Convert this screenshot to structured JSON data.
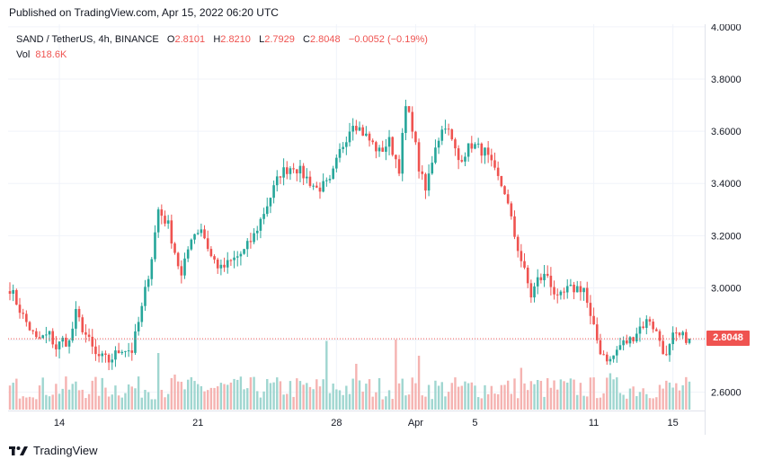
{
  "header": {
    "published": "Published on TradingView.com, Apr 15, 2022 06:20 UTC"
  },
  "legend": {
    "symbol": "SAND / TetherUS, 4h, BINANCE",
    "o_label": "O",
    "o_value": "2.8101",
    "h_label": "H",
    "h_value": "2.8210",
    "l_label": "L",
    "l_value": "2.7929",
    "c_label": "C",
    "c_value": "2.8048",
    "change": "−0.0052 (−0.19%)",
    "vol_label": "Vol",
    "vol_value": "818.6K"
  },
  "colors": {
    "up": "#26a69a",
    "down": "#ef5350",
    "vol_up": "#9fd6d0",
    "vol_down": "#f5b3b1",
    "grid": "#f0f3fa"
  },
  "price_tag": "2.8048",
  "footer": {
    "brand": "TradingView"
  },
  "chart_data": {
    "type": "candlestick",
    "symbol": "SAND / TetherUS",
    "interval": "4h",
    "exchange": "BINANCE",
    "y_axis": {
      "ticks": [
        "4.0000",
        "3.8000",
        "3.6000",
        "3.4000",
        "3.2000",
        "3.0000",
        "2.8000",
        "2.6000"
      ],
      "range": [
        2.53,
        4.01
      ]
    },
    "x_axis": {
      "ticks": [
        "14",
        "21",
        "28",
        "Apr",
        "5",
        "11",
        "15"
      ],
      "tick_index": [
        15,
        57,
        99,
        123,
        141,
        177,
        201
      ]
    },
    "last_price": 2.8048,
    "anchors": [
      [
        0,
        3.0
      ],
      [
        4,
        2.89
      ],
      [
        8,
        2.8
      ],
      [
        12,
        2.82
      ],
      [
        14,
        2.77
      ],
      [
        16,
        2.8
      ],
      [
        18,
        2.79
      ],
      [
        20,
        2.9
      ],
      [
        23,
        2.82
      ],
      [
        26,
        2.74
      ],
      [
        30,
        2.72
      ],
      [
        34,
        2.77
      ],
      [
        37,
        2.76
      ],
      [
        40,
        2.92
      ],
      [
        43,
        3.12
      ],
      [
        45,
        3.3
      ],
      [
        48,
        3.24
      ],
      [
        52,
        3.04
      ],
      [
        55,
        3.2
      ],
      [
        58,
        3.23
      ],
      [
        61,
        3.12
      ],
      [
        64,
        3.07
      ],
      [
        67,
        3.1
      ],
      [
        71,
        3.14
      ],
      [
        74,
        3.2
      ],
      [
        78,
        3.32
      ],
      [
        82,
        3.44
      ],
      [
        86,
        3.47
      ],
      [
        90,
        3.42
      ],
      [
        93,
        3.38
      ],
      [
        97,
        3.4
      ],
      [
        100,
        3.52
      ],
      [
        104,
        3.64
      ],
      [
        108,
        3.58
      ],
      [
        112,
        3.52
      ],
      [
        115,
        3.56
      ],
      [
        118,
        3.46
      ],
      [
        120,
        3.69
      ],
      [
        122,
        3.62
      ],
      [
        124,
        3.46
      ],
      [
        126,
        3.37
      ],
      [
        129,
        3.55
      ],
      [
        132,
        3.63
      ],
      [
        136,
        3.49
      ],
      [
        140,
        3.55
      ],
      [
        144,
        3.52
      ],
      [
        147,
        3.44
      ],
      [
        150,
        3.37
      ],
      [
        153,
        3.2
      ],
      [
        156,
        3.06
      ],
      [
        158,
        2.97
      ],
      [
        160,
        3.03
      ],
      [
        163,
        3.05
      ],
      [
        166,
        2.95
      ],
      [
        169,
        2.99
      ],
      [
        172,
        3.0
      ],
      [
        174,
        3.0
      ],
      [
        176,
        2.88
      ],
      [
        179,
        2.76
      ],
      [
        182,
        2.72
      ],
      [
        185,
        2.78
      ],
      [
        188,
        2.8
      ],
      [
        191,
        2.85
      ],
      [
        194,
        2.88
      ],
      [
        197,
        2.8
      ],
      [
        199,
        2.73
      ],
      [
        201,
        2.81
      ]
    ],
    "volume": {
      "baseline_avg": 190,
      "spikes": [
        [
          45,
          420
        ],
        [
          50,
          260
        ],
        [
          96,
          510
        ],
        [
          105,
          340
        ],
        [
          117,
          520
        ],
        [
          124,
          400
        ],
        [
          155,
          310
        ],
        [
          160,
          220
        ],
        [
          182,
          270
        ]
      ]
    }
  }
}
